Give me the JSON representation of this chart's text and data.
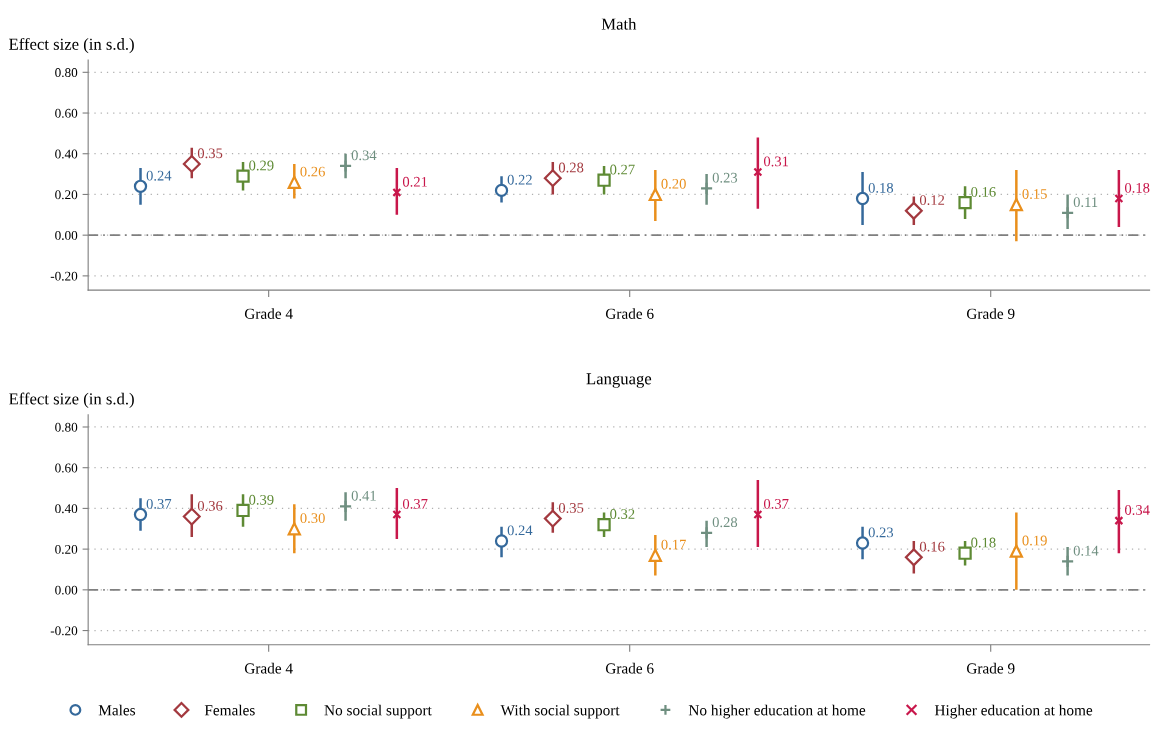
{
  "chart_data": [
    {
      "type": "scatter",
      "title": "Math",
      "ylabel": "Effect size (in s.d.)",
      "categories": [
        "Grade 4",
        "Grade 6",
        "Grade 9"
      ],
      "ylim": [
        -0.27,
        0.86
      ],
      "yticks": [
        {
          "value": -0.2,
          "label": "-0.20"
        },
        {
          "value": 0,
          "label": "0.00"
        },
        {
          "value": 0.2,
          "label": "0.20"
        },
        {
          "value": 0.4,
          "label": "0.40"
        },
        {
          "value": 0.6,
          "label": "0.60"
        },
        {
          "value": 0.8,
          "label": "0.80"
        }
      ],
      "grid": "y",
      "ref_lines": [
        {
          "axis": "y",
          "value": 0,
          "color": "#7f7f7f",
          "line_style": "dashed"
        }
      ],
      "series": [
        {
          "color": "#35699b",
          "marker": "circle",
          "values": [
            0.24,
            0.22,
            0.18
          ],
          "value_labels": [
            "0.24",
            "0.22",
            "0.18"
          ],
          "errors": [
            [
              0.15,
              0.33
            ],
            [
              0.16,
              0.29
            ],
            [
              0.05,
              0.31
            ]
          ]
        },
        {
          "color": "#a3393f",
          "marker": "diamond",
          "values": [
            0.35,
            0.28,
            0.12
          ],
          "value_labels": [
            "0.35",
            "0.28",
            "0.12"
          ],
          "errors": [
            [
              0.28,
              0.43
            ],
            [
              0.2,
              0.36
            ],
            [
              0.05,
              0.19
            ]
          ]
        },
        {
          "color": "#5e8a34",
          "marker": "square",
          "values": [
            0.29,
            0.27,
            0.16
          ],
          "value_labels": [
            "0.29",
            "0.27",
            "0.16"
          ],
          "errors": [
            [
              0.22,
              0.36
            ],
            [
              0.2,
              0.34
            ],
            [
              0.08,
              0.24
            ]
          ]
        },
        {
          "color": "#e98f1c",
          "marker": "triangle",
          "values": [
            0.26,
            0.2,
            0.15
          ],
          "value_labels": [
            "0.26",
            "0.20",
            "0.15"
          ],
          "errors": [
            [
              0.18,
              0.35
            ],
            [
              0.07,
              0.32
            ],
            [
              -0.03,
              0.32
            ]
          ]
        },
        {
          "color": "#6f8f80",
          "marker": "cross",
          "values": [
            0.34,
            0.23,
            0.11
          ],
          "value_labels": [
            "0.34",
            "0.23",
            "0.11"
          ],
          "errors": [
            [
              0.28,
              0.4
            ],
            [
              0.15,
              0.3
            ],
            [
              0.03,
              0.2
            ]
          ]
        },
        {
          "color": "#c8174b",
          "marker": "x",
          "values": [
            0.21,
            0.31,
            0.18
          ],
          "value_labels": [
            "0.21",
            "0.31",
            "0.18"
          ],
          "errors": [
            [
              0.1,
              0.33
            ],
            [
              0.13,
              0.48
            ],
            [
              0.04,
              0.32
            ]
          ]
        }
      ]
    },
    {
      "type": "scatter",
      "title": "Language",
      "ylabel": "Effect size (in s.d.)",
      "categories": [
        "Grade 4",
        "Grade 6",
        "Grade 9"
      ],
      "ylim": [
        -0.27,
        0.86
      ],
      "yticks": [
        {
          "value": -0.2,
          "label": "-0.20"
        },
        {
          "value": 0,
          "label": "0.00"
        },
        {
          "value": 0.2,
          "label": "0.20"
        },
        {
          "value": 0.4,
          "label": "0.40"
        },
        {
          "value": 0.6,
          "label": "0.60"
        },
        {
          "value": 0.8,
          "label": "0.80"
        }
      ],
      "grid": "y",
      "legend": "bottom",
      "ref_lines": [
        {
          "axis": "y",
          "value": 0,
          "color": "#7f7f7f",
          "line_style": "dashed"
        }
      ],
      "series": [
        {
          "name": "Males",
          "color": "#35699b",
          "marker": "circle",
          "values": [
            0.37,
            0.24,
            0.23
          ],
          "value_labels": [
            "0.37",
            "0.24",
            "0.23"
          ],
          "errors": [
            [
              0.29,
              0.45
            ],
            [
              0.16,
              0.31
            ],
            [
              0.15,
              0.31
            ]
          ]
        },
        {
          "name": "Females",
          "color": "#a3393f",
          "marker": "diamond",
          "values": [
            0.36,
            0.35,
            0.16
          ],
          "value_labels": [
            "0.36",
            "0.35",
            "0.16"
          ],
          "errors": [
            [
              0.26,
              0.47
            ],
            [
              0.28,
              0.43
            ],
            [
              0.08,
              0.24
            ]
          ]
        },
        {
          "name": "No social support",
          "color": "#5e8a34",
          "marker": "square",
          "values": [
            0.39,
            0.32,
            0.18
          ],
          "value_labels": [
            "0.39",
            "0.32",
            "0.18"
          ],
          "errors": [
            [
              0.31,
              0.47
            ],
            [
              0.26,
              0.38
            ],
            [
              0.12,
              0.24
            ]
          ]
        },
        {
          "name": "With social support",
          "color": "#e98f1c",
          "marker": "triangle",
          "values": [
            0.3,
            0.17,
            0.19
          ],
          "value_labels": [
            "0.30",
            "0.17",
            "0.19"
          ],
          "errors": [
            [
              0.18,
              0.42
            ],
            [
              0.07,
              0.27
            ],
            [
              0.0,
              0.38
            ]
          ]
        },
        {
          "name": "No higher education at home",
          "color": "#6f8f80",
          "marker": "cross",
          "values": [
            0.41,
            0.28,
            0.14
          ],
          "value_labels": [
            "0.41",
            "0.28",
            "0.14"
          ],
          "errors": [
            [
              0.34,
              0.48
            ],
            [
              0.21,
              0.34
            ],
            [
              0.07,
              0.21
            ]
          ]
        },
        {
          "name": "Higher education at home",
          "color": "#c8174b",
          "marker": "x",
          "values": [
            0.37,
            0.37,
            0.34
          ],
          "value_labels": [
            "0.37",
            "0.37",
            "0.34"
          ],
          "errors": [
            [
              0.25,
              0.5
            ],
            [
              0.21,
              0.54
            ],
            [
              0.18,
              0.49
            ]
          ]
        }
      ]
    }
  ]
}
